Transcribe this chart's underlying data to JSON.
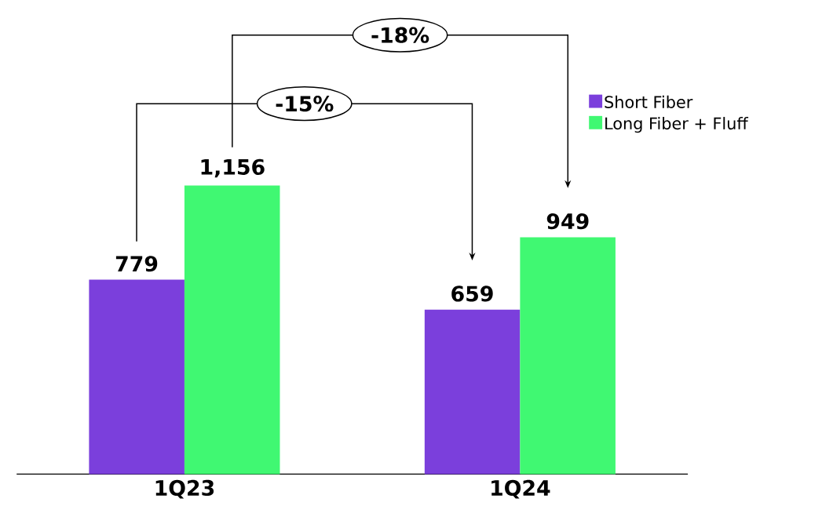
{
  "chart_data": {
    "type": "bar",
    "categories": [
      "1Q23",
      "1Q24"
    ],
    "series": [
      {
        "name": "Short Fiber",
        "color": "#7b3fdc",
        "values": [
          779,
          659
        ],
        "value_labels": [
          "779",
          "659"
        ]
      },
      {
        "name": "Long Fiber + Fluff",
        "color": "#40f872",
        "values": [
          1156,
          949
        ],
        "value_labels": [
          "1,156",
          "949"
        ]
      }
    ],
    "annotations": [
      "-15%",
      "-18%"
    ],
    "legend": "top right",
    "grid": false
  }
}
